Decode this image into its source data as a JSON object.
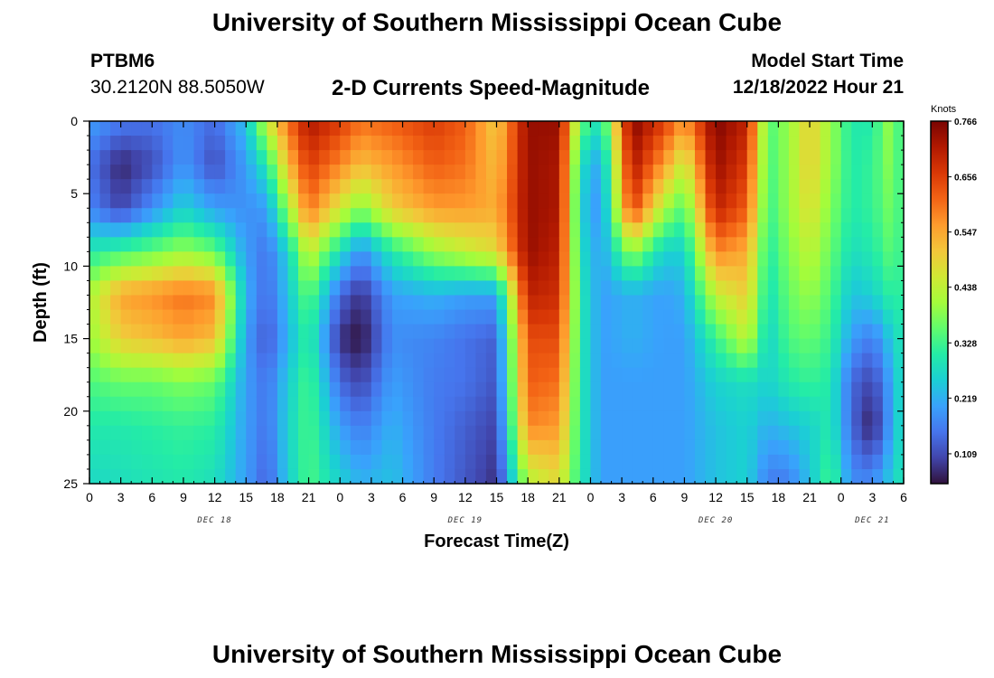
{
  "header": {
    "title": "University of Southern Mississippi Ocean Cube",
    "station_id": "PTBM6",
    "station_coords": "30.2120N  88.5050W",
    "plot_title": "2-D Currents Speed-Magnitude",
    "model_start_label": "Model Start Time",
    "model_start_value": "12/18/2022 Hour 21"
  },
  "footer": {
    "title": "University of Southern Mississippi Ocean Cube"
  },
  "colors": {
    "colormap": [
      "#30123b",
      "#4145ab",
      "#4675ed",
      "#39a2fc",
      "#1bcfd4",
      "#24eca6",
      "#61fc6c",
      "#a4fc3b",
      "#d1e834",
      "#f3c63a",
      "#fe9b2d",
      "#f36315",
      "#d93806",
      "#b11901",
      "#7a0402"
    ]
  },
  "chart_data": {
    "type": "heatmap",
    "title": "2-D Currents Speed-Magnitude",
    "xlabel": "Forecast Time(Z)",
    "ylabel": "Depth (ft)",
    "x_ticks": [
      "0",
      "3",
      "6",
      "9",
      "12",
      "15",
      "18",
      "21",
      "0",
      "3",
      "6",
      "9",
      "12",
      "15",
      "18",
      "21",
      "0",
      "3",
      "6",
      "9",
      "12",
      "15",
      "18",
      "21",
      "0",
      "3",
      "6"
    ],
    "x_hours": [
      0,
      3,
      6,
      9,
      12,
      15,
      18,
      21,
      24,
      27,
      30,
      33,
      36,
      39,
      42,
      45,
      48,
      51,
      54,
      57,
      60,
      63,
      66,
      69,
      72,
      75,
      78
    ],
    "xlim": [
      0,
      78
    ],
    "date_labels": [
      {
        "label": "DEC 18",
        "hour": 12
      },
      {
        "label": "DEC 19",
        "hour": 36
      },
      {
        "label": "DEC 20",
        "hour": 60
      },
      {
        "label": "DEC 21",
        "hour": 75
      }
    ],
    "y_ticks": [
      "0",
      "5",
      "10",
      "15",
      "20",
      "25"
    ],
    "y_values": [
      0,
      5,
      10,
      15,
      20,
      25
    ],
    "ylim": [
      0,
      25
    ],
    "colorbar": {
      "unit": "Knots",
      "ticks": [
        "0.766",
        "0.656",
        "0.547",
        "0.438",
        "0.328",
        "0.219",
        "0.109"
      ],
      "tick_values": [
        0.766,
        0.656,
        0.547,
        0.438,
        0.328,
        0.219,
        0.109
      ],
      "range": [
        0.05,
        0.766
      ]
    },
    "depth_profiles": [
      {
        "hour": 0,
        "depths": [
          0,
          3,
          6,
          9,
          12,
          15,
          18,
          21,
          25
        ],
        "speed": [
          0.2,
          0.15,
          0.17,
          0.3,
          0.42,
          0.4,
          0.34,
          0.3,
          0.27
        ]
      },
      {
        "hour": 3,
        "depths": [
          0,
          3,
          6,
          9,
          12,
          15,
          18,
          21,
          25
        ],
        "speed": [
          0.16,
          0.07,
          0.1,
          0.33,
          0.55,
          0.5,
          0.36,
          0.3,
          0.28
        ]
      },
      {
        "hour": 6,
        "depths": [
          0,
          3,
          6,
          9,
          12,
          15,
          18,
          21,
          25
        ],
        "speed": [
          0.15,
          0.11,
          0.18,
          0.36,
          0.57,
          0.52,
          0.36,
          0.31,
          0.29
        ]
      },
      {
        "hour": 9,
        "depths": [
          0,
          3,
          6,
          9,
          12,
          15,
          18,
          21,
          25
        ],
        "speed": [
          0.18,
          0.19,
          0.26,
          0.4,
          0.6,
          0.55,
          0.38,
          0.32,
          0.3
        ]
      },
      {
        "hour": 12,
        "depths": [
          0,
          3,
          6,
          9,
          12,
          15,
          18,
          21,
          25
        ],
        "speed": [
          0.14,
          0.11,
          0.2,
          0.36,
          0.58,
          0.52,
          0.36,
          0.31,
          0.28
        ]
      },
      {
        "hour": 15,
        "depths": [
          0,
          3,
          6,
          9,
          12,
          15,
          18,
          21,
          25
        ],
        "speed": [
          0.24,
          0.2,
          0.18,
          0.2,
          0.22,
          0.2,
          0.2,
          0.2,
          0.2
        ]
      },
      {
        "hour": 17,
        "depths": [
          0,
          3,
          6,
          9,
          12,
          15,
          18,
          21,
          25
        ],
        "speed": [
          0.45,
          0.3,
          0.2,
          0.15,
          0.14,
          0.12,
          0.15,
          0.15,
          0.13
        ]
      },
      {
        "hour": 19,
        "depths": [
          0,
          3,
          6,
          9,
          12,
          15,
          18,
          21,
          25
        ],
        "speed": [
          0.6,
          0.52,
          0.4,
          0.26,
          0.24,
          0.22,
          0.25,
          0.26,
          0.25
        ]
      },
      {
        "hour": 21,
        "depths": [
          0,
          3,
          6,
          9,
          12,
          15,
          18,
          21,
          25
        ],
        "speed": [
          0.72,
          0.66,
          0.6,
          0.45,
          0.36,
          0.32,
          0.34,
          0.34,
          0.34
        ]
      },
      {
        "hour": 24,
        "depths": [
          0,
          3,
          6,
          9,
          12,
          15,
          18,
          21,
          25
        ],
        "speed": [
          0.66,
          0.58,
          0.46,
          0.28,
          0.14,
          0.08,
          0.14,
          0.2,
          0.26
        ]
      },
      {
        "hour": 26,
        "depths": [
          0,
          3,
          6,
          9,
          12,
          15,
          18,
          21,
          25
        ],
        "speed": [
          0.6,
          0.52,
          0.38,
          0.18,
          0.08,
          0.05,
          0.1,
          0.16,
          0.22
        ]
      },
      {
        "hour": 29,
        "depths": [
          0,
          3,
          6,
          9,
          12,
          15,
          18,
          21,
          25
        ],
        "speed": [
          0.62,
          0.56,
          0.5,
          0.3,
          0.2,
          0.18,
          0.2,
          0.22,
          0.24
        ]
      },
      {
        "hour": 33,
        "depths": [
          0,
          3,
          6,
          9,
          12,
          15,
          18,
          21,
          25
        ],
        "speed": [
          0.66,
          0.62,
          0.56,
          0.4,
          0.22,
          0.17,
          0.16,
          0.16,
          0.16
        ]
      },
      {
        "hour": 36,
        "depths": [
          0,
          3,
          6,
          9,
          12,
          15,
          18,
          21,
          25
        ],
        "speed": [
          0.62,
          0.6,
          0.56,
          0.44,
          0.2,
          0.15,
          0.15,
          0.13,
          0.12
        ]
      },
      {
        "hour": 39,
        "depths": [
          0,
          3,
          6,
          9,
          12,
          15,
          18,
          21,
          25
        ],
        "speed": [
          0.5,
          0.52,
          0.54,
          0.48,
          0.2,
          0.13,
          0.12,
          0.1,
          0.08
        ]
      },
      {
        "hour": 42,
        "depths": [
          0,
          3,
          6,
          9,
          12,
          15,
          18,
          21,
          25
        ],
        "speed": [
          0.74,
          0.74,
          0.74,
          0.74,
          0.7,
          0.64,
          0.62,
          0.58,
          0.42
        ]
      },
      {
        "hour": 45,
        "depths": [
          0,
          3,
          6,
          9,
          12,
          15,
          18,
          21,
          25
        ],
        "speed": [
          0.74,
          0.72,
          0.72,
          0.7,
          0.68,
          0.64,
          0.6,
          0.56,
          0.48
        ]
      },
      {
        "hour": 47,
        "depths": [
          0,
          3,
          6,
          9,
          12,
          15,
          18,
          21,
          25
        ],
        "speed": [
          0.36,
          0.28,
          0.26,
          0.28,
          0.3,
          0.3,
          0.3,
          0.3,
          0.3
        ]
      },
      {
        "hour": 49,
        "depths": [
          0,
          3,
          6,
          9,
          12,
          15,
          18,
          21,
          25
        ],
        "speed": [
          0.28,
          0.2,
          0.18,
          0.2,
          0.2,
          0.2,
          0.2,
          0.2,
          0.2
        ]
      },
      {
        "hour": 52,
        "depths": [
          0,
          3,
          6,
          9,
          12,
          15,
          18,
          21,
          25
        ],
        "speed": [
          0.76,
          0.72,
          0.66,
          0.4,
          0.22,
          0.22,
          0.2,
          0.2,
          0.2
        ]
      },
      {
        "hour": 55,
        "depths": [
          0,
          3,
          6,
          9,
          12,
          15,
          18,
          21,
          25
        ],
        "speed": [
          0.66,
          0.56,
          0.42,
          0.26,
          0.2,
          0.2,
          0.2,
          0.2,
          0.2
        ]
      },
      {
        "hour": 57,
        "depths": [
          0,
          3,
          6,
          9,
          12,
          15,
          18,
          21,
          25
        ],
        "speed": [
          0.56,
          0.44,
          0.34,
          0.26,
          0.22,
          0.2,
          0.2,
          0.2,
          0.2
        ]
      },
      {
        "hour": 60,
        "depths": [
          0,
          3,
          6,
          9,
          12,
          15,
          18,
          21,
          25
        ],
        "speed": [
          0.76,
          0.74,
          0.7,
          0.58,
          0.44,
          0.32,
          0.26,
          0.24,
          0.24
        ]
      },
      {
        "hour": 63,
        "depths": [
          0,
          3,
          6,
          9,
          12,
          15,
          18,
          21,
          25
        ],
        "speed": [
          0.7,
          0.66,
          0.62,
          0.54,
          0.5,
          0.44,
          0.28,
          0.26,
          0.26
        ]
      },
      {
        "hour": 65,
        "depths": [
          0,
          3,
          6,
          9,
          12,
          15,
          18,
          21,
          25
        ],
        "speed": [
          0.34,
          0.33,
          0.32,
          0.3,
          0.28,
          0.26,
          0.26,
          0.22,
          0.16
        ]
      },
      {
        "hour": 67,
        "depths": [
          0,
          3,
          6,
          9,
          12,
          15,
          18,
          21,
          25
        ],
        "speed": [
          0.4,
          0.4,
          0.4,
          0.38,
          0.36,
          0.34,
          0.3,
          0.24,
          0.16
        ]
      },
      {
        "hour": 69,
        "depths": [
          0,
          3,
          6,
          9,
          12,
          15,
          18,
          21,
          25
        ],
        "speed": [
          0.5,
          0.5,
          0.48,
          0.44,
          0.4,
          0.36,
          0.32,
          0.26,
          0.24
        ]
      },
      {
        "hour": 71,
        "depths": [
          0,
          3,
          6,
          9,
          12,
          15,
          18,
          21,
          25
        ],
        "speed": [
          0.4,
          0.4,
          0.38,
          0.36,
          0.34,
          0.32,
          0.3,
          0.3,
          0.34
        ]
      },
      {
        "hour": 73,
        "depths": [
          0,
          3,
          6,
          9,
          12,
          15,
          18,
          21,
          25
        ],
        "speed": [
          0.3,
          0.3,
          0.3,
          0.28,
          0.24,
          0.2,
          0.14,
          0.14,
          0.18
        ]
      },
      {
        "hour": 75,
        "depths": [
          0,
          3,
          6,
          9,
          12,
          15,
          18,
          21,
          25
        ],
        "speed": [
          0.3,
          0.32,
          0.32,
          0.3,
          0.26,
          0.16,
          0.1,
          0.06,
          0.18
        ]
      },
      {
        "hour": 77,
        "depths": [
          0,
          3,
          6,
          9,
          12,
          15,
          18,
          21,
          25
        ],
        "speed": [
          0.42,
          0.4,
          0.38,
          0.36,
          0.32,
          0.26,
          0.22,
          0.22,
          0.26
        ]
      },
      {
        "hour": 78,
        "depths": [
          0,
          3,
          6,
          9,
          12,
          15,
          18,
          21,
          25
        ],
        "speed": [
          0.26,
          0.28,
          0.3,
          0.3,
          0.3,
          0.3,
          0.3,
          0.3,
          0.3
        ]
      }
    ]
  }
}
